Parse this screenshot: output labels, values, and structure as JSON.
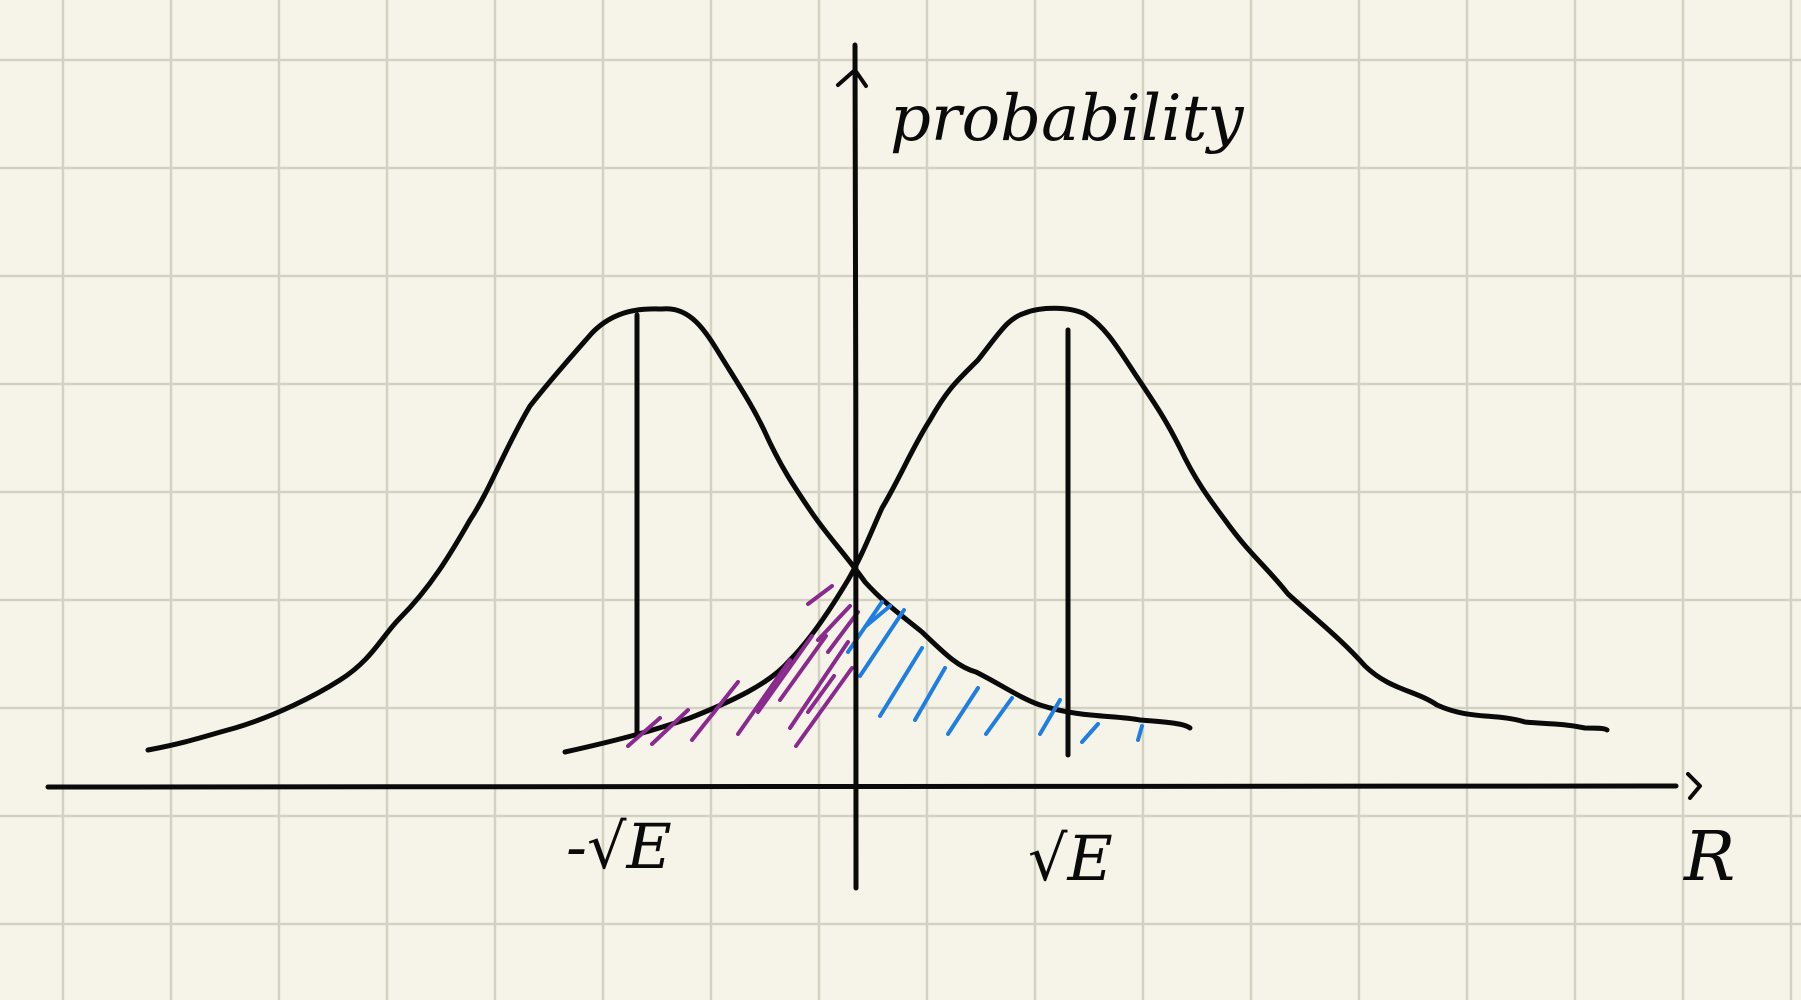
{
  "axes": {
    "y_label": "probability",
    "x_label": "R"
  },
  "ticks": {
    "left": "-√E",
    "right": "√E"
  },
  "colors": {
    "paper": "#f6f4e8",
    "grid": "#d2d1c4",
    "ink": "#0a0a0a",
    "left_tail_hatch": "#8a2a8f",
    "right_tail_hatch": "#1f7fe0"
  }
}
